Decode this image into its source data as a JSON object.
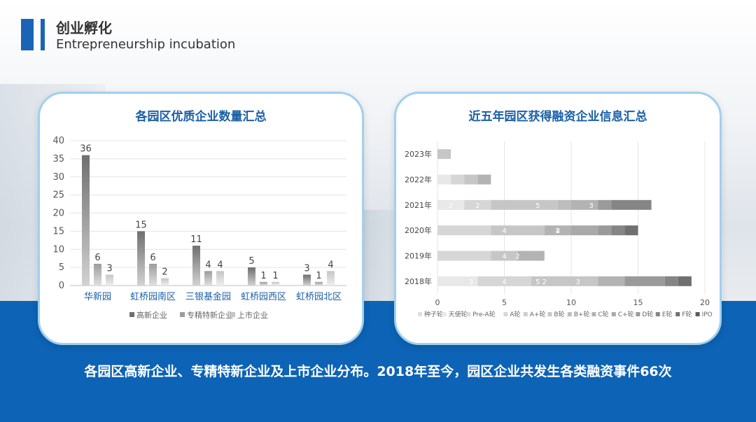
{
  "header": {
    "title_cn": "创业孵化",
    "title_en": "Entrepreneurship incubation"
  },
  "caption": "各园区高新企业、专精特新企业及上市企业分布。2018年至今，园区企业共发生各类融资事件66次",
  "colors": {
    "dark": "#7f7f7f",
    "mid": "#a8a8a8",
    "light": "#d3d3d3",
    "brand": "#0d63b5"
  },
  "chart_data": [
    {
      "type": "bar",
      "title": "各园区优质企业数量汇总",
      "categories": [
        "华新园",
        "虹桥园南区",
        "三银基金园",
        "虹桥园西区",
        "虹桥园北区"
      ],
      "series": [
        {
          "name": "高新企业",
          "values": [
            36,
            15,
            11,
            5,
            3
          ]
        },
        {
          "name": "专精特新企业",
          "values": [
            6,
            6,
            4,
            1,
            1
          ]
        },
        {
          "name": "上市企业",
          "values": [
            3,
            2,
            4,
            1,
            4
          ]
        }
      ],
      "ylim": [
        0,
        40
      ],
      "yticks": [
        "0",
        "5",
        "10",
        "15",
        "20",
        "25",
        "30",
        "35",
        "40"
      ],
      "legend": "bottom",
      "grid": true
    },
    {
      "type": "bar",
      "orientation": "horizontal",
      "stacked": true,
      "title": "近五年园区获得融资企业信息汇总",
      "categories": [
        "2023年",
        "2022年",
        "2021年",
        "2020年",
        "2019年",
        "2018年"
      ],
      "series": [
        {
          "name": "种子轮",
          "values": [
            0,
            0,
            0,
            0,
            0,
            0
          ]
        },
        {
          "name": "天使轮",
          "values": [
            0,
            1,
            2,
            0,
            0,
            3
          ]
        },
        {
          "name": "Pre-A轮",
          "values": [
            0,
            0,
            0,
            0,
            0,
            0
          ]
        },
        {
          "name": "A轮",
          "values": [
            0,
            1,
            2,
            4,
            4,
            4
          ]
        },
        {
          "name": "A+轮",
          "values": [
            0,
            0,
            0,
            0,
            0,
            0
          ]
        },
        {
          "name": "B轮",
          "values": [
            1,
            1,
            5,
            4,
            2,
            5
          ]
        },
        {
          "name": "B+轮",
          "values": [
            0,
            0,
            1,
            0,
            0,
            0
          ]
        },
        {
          "name": "C轮",
          "values": [
            0,
            1,
            2,
            2,
            2,
            2
          ]
        },
        {
          "name": "C+轮",
          "values": [
            0,
            0,
            0,
            2,
            0,
            0
          ]
        },
        {
          "name": "D轮",
          "values": [
            0,
            0,
            1,
            1,
            0,
            3
          ]
        },
        {
          "name": "E轮",
          "values": [
            0,
            0,
            3,
            1,
            0,
            1
          ]
        },
        {
          "name": "F轮",
          "values": [
            0,
            0,
            0,
            1,
            0,
            1
          ]
        },
        {
          "name": "IPO",
          "values": [
            0,
            0,
            0,
            0,
            0,
            0
          ]
        }
      ],
      "bar_labels": [
        [],
        [],
        [
          [
            "2",
            0
          ],
          [
            "2",
            2
          ],
          [
            "5",
            5
          ],
          [
            "3",
            10
          ]
        ],
        [
          [
            "4",
            3
          ],
          [
            "4",
            7
          ],
          [
            "2",
            8
          ],
          [
            "2",
            8
          ]
        ],
        [
          [
            "4",
            3
          ],
          [
            "2",
            5
          ]
        ],
        [
          [
            "3",
            1
          ],
          [
            "4",
            3
          ],
          [
            "5",
            5
          ],
          [
            "2",
            7
          ],
          [
            "3",
            9
          ]
        ]
      ],
      "xlim": [
        0,
        20
      ],
      "xticks": [
        "0",
        "5",
        "10",
        "15",
        "20"
      ],
      "legend": "bottom",
      "grid": true
    }
  ]
}
